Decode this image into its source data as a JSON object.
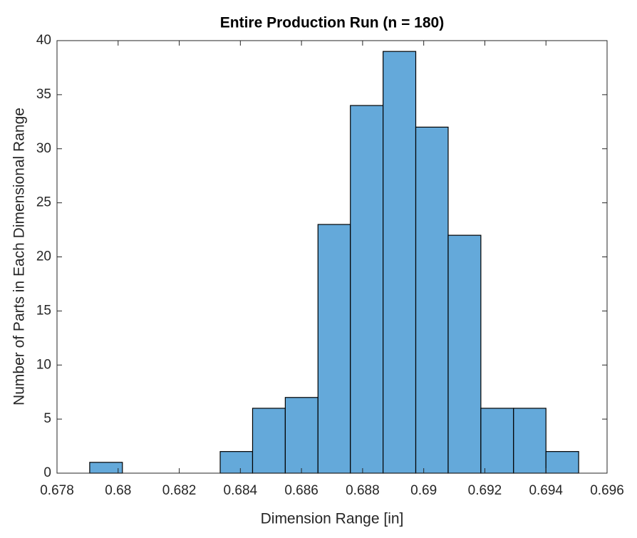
{
  "chart_data": {
    "type": "histogram",
    "title": "Entire Production Run (n = 180)",
    "x_label": "Dimension Range [in]",
    "y_label": "Number of Parts in Each Dimensional Range",
    "bins": [
      0.67907,
      0.68014,
      0.6812,
      0.68227,
      0.68334,
      0.6844,
      0.68547,
      0.68654,
      0.6876,
      0.68867,
      0.68974,
      0.6908,
      0.69187,
      0.69294,
      0.694,
      0.69507
    ],
    "counts": [
      1,
      0,
      0,
      0,
      2,
      6,
      7,
      23,
      34,
      39,
      32,
      22,
      6,
      6,
      2
    ],
    "color": "#64a9da",
    "edge_color": "#000000",
    "xlim": [
      0.678,
      0.696
    ],
    "xticks": [
      0.678,
      0.68,
      0.682,
      0.684,
      0.686,
      0.688,
      0.69,
      0.692,
      0.694,
      0.696
    ],
    "ylim": [
      0,
      40
    ],
    "yticks": [
      0,
      5,
      10,
      15,
      20,
      25,
      30,
      35,
      40
    ]
  }
}
